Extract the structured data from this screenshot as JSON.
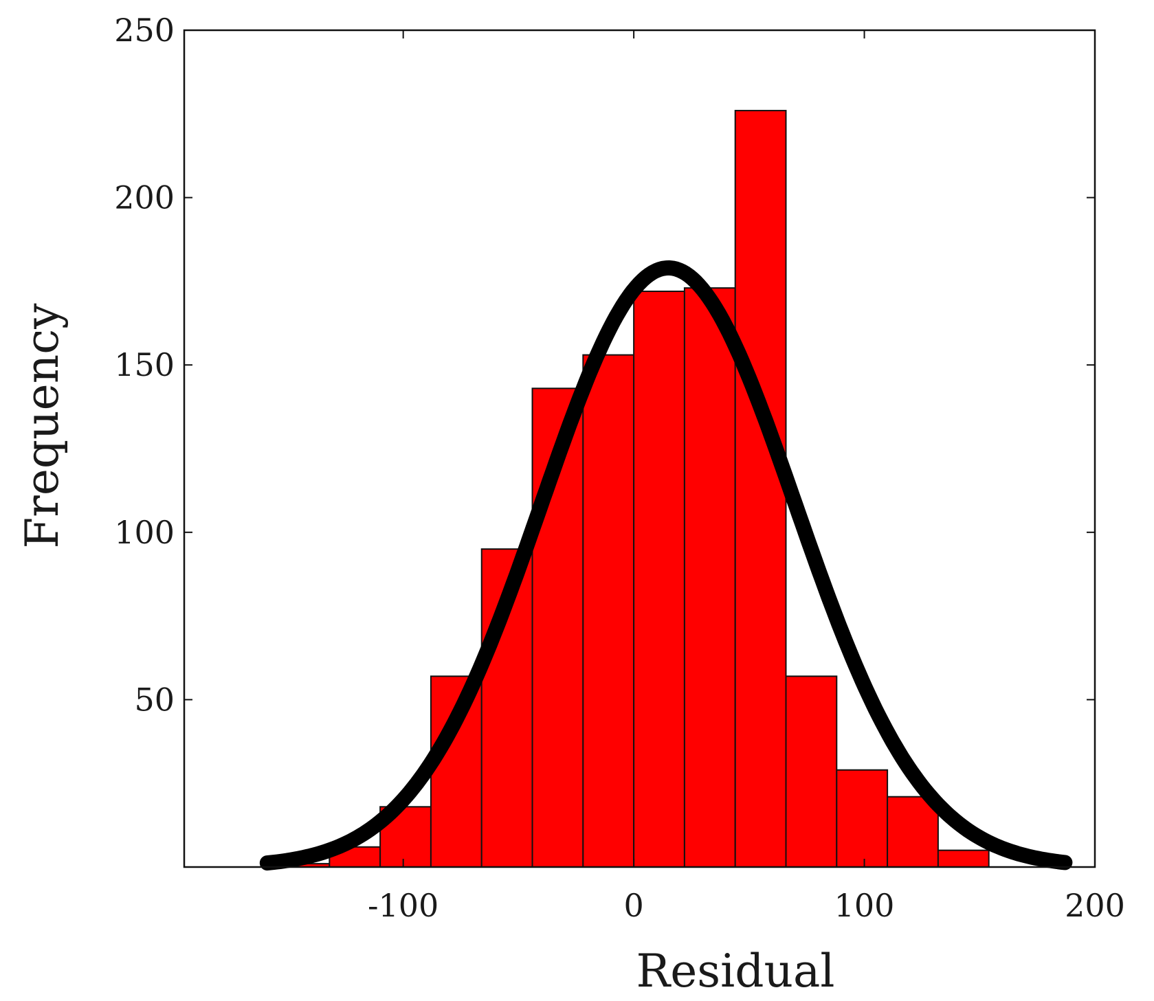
{
  "chart_data": {
    "type": "bar",
    "subtype": "histogram-with-normal-fit",
    "title": "",
    "xlabel": "Residual",
    "ylabel": "Frequency",
    "xlim": [
      -195,
      200
    ],
    "ylim": [
      0,
      250
    ],
    "xticks": [
      -100,
      0,
      100,
      200
    ],
    "yticks": [
      50,
      100,
      150,
      200,
      250
    ],
    "bin_width": 22,
    "bar_color": "#ff0000",
    "bar_edge_color": "#111111",
    "curve_color": "#000000",
    "grid": false,
    "bins": [
      {
        "start": -154,
        "end": -132,
        "count": 1
      },
      {
        "start": -132,
        "end": -110,
        "count": 6
      },
      {
        "start": -110,
        "end": -88,
        "count": 18
      },
      {
        "start": -88,
        "end": -66,
        "count": 57
      },
      {
        "start": -66,
        "end": -44,
        "count": 95
      },
      {
        "start": -44,
        "end": -22,
        "count": 143
      },
      {
        "start": -22,
        "end": 0,
        "count": 153
      },
      {
        "start": 0,
        "end": 22,
        "count": 172
      },
      {
        "start": 22,
        "end": 44,
        "count": 173
      },
      {
        "start": 44,
        "end": 66,
        "count": 226
      },
      {
        "start": 66,
        "end": 88,
        "count": 57
      },
      {
        "start": 88,
        "end": 110,
        "count": 29
      },
      {
        "start": 110,
        "end": 132,
        "count": 21
      },
      {
        "start": 132,
        "end": 154,
        "count": 5
      }
    ],
    "normal_fit": {
      "mean": 15,
      "std": 55,
      "peak": 179,
      "x_range": [
        -159,
        187
      ]
    }
  }
}
